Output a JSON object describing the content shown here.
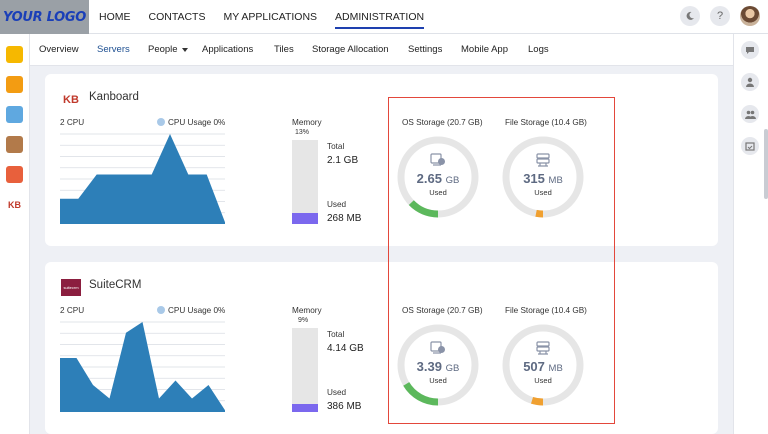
{
  "header": {
    "logo_text": "YOUR LOGO",
    "nav": [
      "HOME",
      "CONTACTS",
      "MY APPLICATIONS",
      "ADMINISTRATION"
    ],
    "active_nav": "ADMINISTRATION",
    "icons": [
      "moon-icon",
      "help-icon",
      "user-avatar"
    ]
  },
  "subnav": {
    "items": [
      "Overview",
      "Servers",
      "People",
      "Applications",
      "Tiles",
      "Storage Allocation",
      "Settings",
      "Mobile App",
      "Logs"
    ],
    "active": "Servers"
  },
  "left_apps": [
    "notes-app",
    "mail-app",
    "calendar-app",
    "tasks-app",
    "files-app",
    "kanboard-app"
  ],
  "right_icons": [
    "chat-icon",
    "person-icon",
    "group-icon",
    "calendar-check-icon"
  ],
  "servers": [
    {
      "name": "Kanboard",
      "logo_text": "KB",
      "cpu_label": "2 CPU",
      "cpu_usage_label": "CPU Usage 0%",
      "cpu_series": [
        0.28,
        0.28,
        0.55,
        0.55,
        0.55,
        0.55,
        1.0,
        0.55,
        0.55,
        0.02
      ],
      "memory_label": "Memory",
      "memory_percent_label": "13%",
      "memory_fraction": 0.13,
      "total_label": "Total",
      "total_value": "2.1 GB",
      "used_label": "Used",
      "used_value": "268 MB",
      "os_storage_label": "OS Storage (20.7 GB)",
      "os_used_value": "2.65",
      "os_used_unit": "GB",
      "os_fraction": 0.128,
      "file_storage_label": "File Storage (10.4 GB)",
      "file_used_value": "315",
      "file_used_unit": "MB",
      "file_fraction": 0.03,
      "ring_used_label": "Used"
    },
    {
      "name": "SuiteCRM",
      "logo_text": "suitecrm",
      "cpu_label": "2 CPU",
      "cpu_usage_label": "CPU Usage 0%",
      "cpu_series": [
        0.6,
        0.6,
        0.3,
        0.15,
        0.88,
        1.0,
        0.15,
        0.35,
        0.15,
        0.3,
        0.02
      ],
      "memory_label": "Memory",
      "memory_percent_label": "9%",
      "memory_fraction": 0.09,
      "total_label": "Total",
      "total_value": "4.14 GB",
      "used_label": "Used",
      "used_value": "386 MB",
      "os_storage_label": "OS Storage (20.7 GB)",
      "os_used_value": "3.39",
      "os_used_unit": "GB",
      "os_fraction": 0.164,
      "file_storage_label": "File Storage (10.4 GB)",
      "file_used_value": "507",
      "file_used_unit": "MB",
      "file_fraction": 0.048,
      "ring_used_label": "Used"
    }
  ],
  "colors": {
    "accent": "#1e40af",
    "cpu_fill": "#2d7fb8",
    "memory_fill": "#7b68ee",
    "os_ring": "#5cb85c",
    "file_ring": "#f0a030",
    "ring_track": "#e6e6e6",
    "highlight_box": "#e3473b"
  }
}
